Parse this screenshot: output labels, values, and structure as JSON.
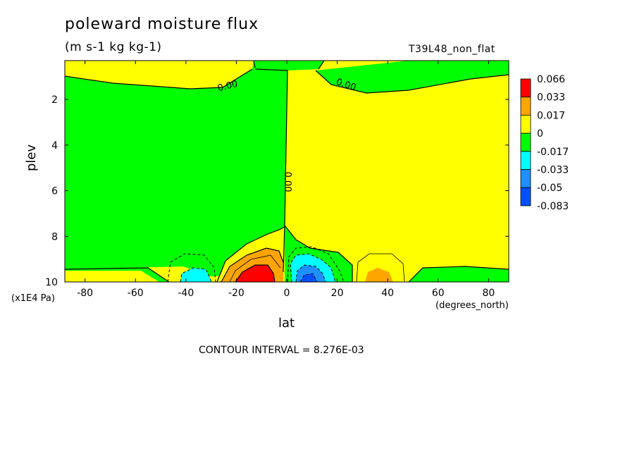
{
  "chart_data": {
    "type": "contour",
    "title": "poleward moisture flux",
    "subtitle": "(m s-1 kg kg-1)",
    "run_label": "T39L48_non_flat",
    "xlabel": "lat",
    "x_unit": "(degrees_north)",
    "ylabel": "plev",
    "y_unit": "(x1E4 Pa)",
    "xlim": [
      -88,
      88
    ],
    "ylim": [
      10,
      0.3
    ],
    "x_ticks": [
      "-80",
      "-60",
      "-40",
      "-20",
      "0",
      "20",
      "40",
      "60",
      "80"
    ],
    "y_ticks": [
      "2",
      "4",
      "6",
      "8",
      "10"
    ],
    "colorbar": {
      "levels": [
        "0.066",
        "0.033",
        "0.017",
        "0",
        "-0.017",
        "-0.033",
        "-0.05",
        "-0.083"
      ],
      "colors": [
        "#ff0000",
        "#ffa500",
        "#ffff00",
        "#00ff00",
        "#00ffff",
        "#1e90ff",
        "#0050ff"
      ]
    },
    "contour_labels": [
      "0.00",
      "0.00",
      "0.00"
    ],
    "contour_interval_text": "CONTOUR INTERVAL = 8.276E-03"
  }
}
